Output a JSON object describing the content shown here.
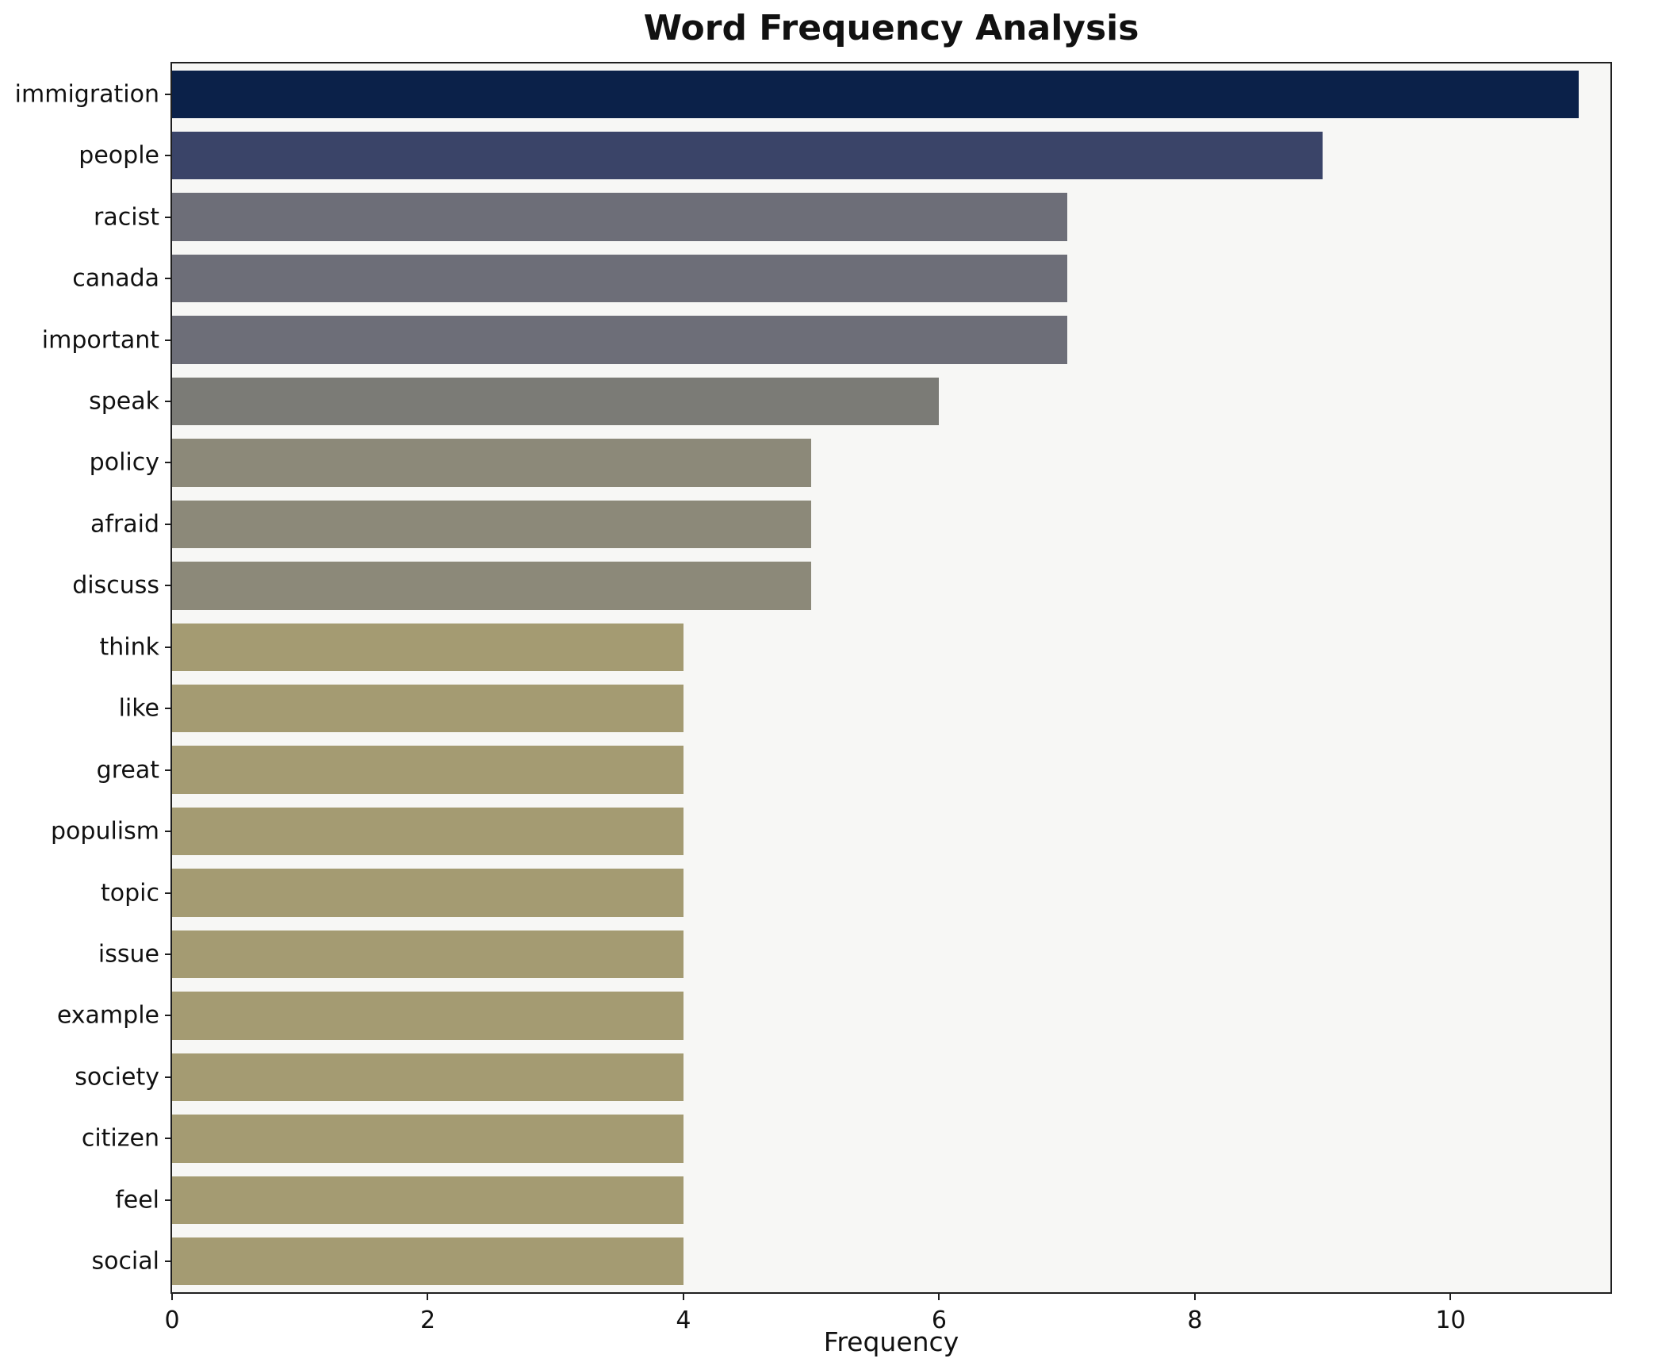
{
  "chart_data": {
    "type": "bar",
    "orientation": "horizontal",
    "title": "Word Frequency Analysis",
    "xlabel": "Frequency",
    "ylabel": "",
    "xlim": [
      0,
      11.25
    ],
    "xticks": [
      0,
      2,
      4,
      6,
      8,
      10
    ],
    "grid": false,
    "legend": "none",
    "categories": [
      "immigration",
      "people",
      "racist",
      "canada",
      "important",
      "speak",
      "policy",
      "afraid",
      "discuss",
      "think",
      "like",
      "great",
      "populism",
      "topic",
      "issue",
      "example",
      "society",
      "citizen",
      "feel",
      "social"
    ],
    "values": [
      11,
      9,
      7,
      7,
      7,
      6,
      5,
      5,
      5,
      4,
      4,
      4,
      4,
      4,
      4,
      4,
      4,
      4,
      4,
      4
    ],
    "bar_colors": [
      "#0b2149",
      "#3a4468",
      "#6d6e78",
      "#6d6e78",
      "#6d6e78",
      "#7b7b76",
      "#8c8979",
      "#8c8979",
      "#8c8979",
      "#a49b72",
      "#a49b72",
      "#a49b72",
      "#a49b72",
      "#a49b72",
      "#a49b72",
      "#a49b72",
      "#a49b72",
      "#a49b72",
      "#a49b72",
      "#a49b72"
    ],
    "colors": {
      "plot_background": "#f7f7f5",
      "figure_background": "#ffffff",
      "axis_line": "#1f1f1f",
      "text": "#111111"
    }
  }
}
